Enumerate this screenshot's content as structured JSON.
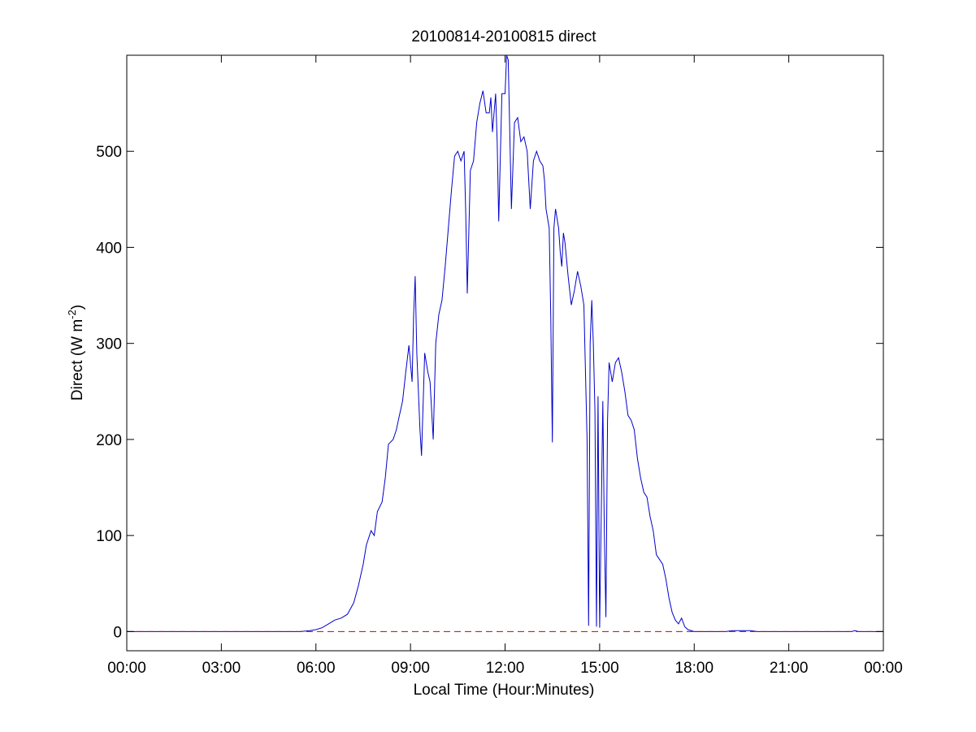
{
  "chart_data": {
    "type": "line",
    "title": "20100814-20100815 direct",
    "xlabel": "Local Time (Hour:Minutes)",
    "ylabel": {
      "prefix": "Direct (W m",
      "superscript": "-2",
      "suffix": ")"
    },
    "x_unit": "hours since 00:00 local time",
    "xlim": [
      0,
      24
    ],
    "ylim": [
      -20,
      600
    ],
    "x_ticks": [
      {
        "value": 0,
        "label": "00:00"
      },
      {
        "value": 3,
        "label": "03:00"
      },
      {
        "value": 6,
        "label": "06:00"
      },
      {
        "value": 9,
        "label": "09:00"
      },
      {
        "value": 12,
        "label": "12:00"
      },
      {
        "value": 15,
        "label": "15:00"
      },
      {
        "value": 18,
        "label": "18:00"
      },
      {
        "value": 21,
        "label": "21:00"
      },
      {
        "value": 24,
        "label": "00:00"
      }
    ],
    "y_ticks": [
      {
        "value": 0,
        "label": "0"
      },
      {
        "value": 100,
        "label": "100"
      },
      {
        "value": 200,
        "label": "200"
      },
      {
        "value": 300,
        "label": "300"
      },
      {
        "value": 400,
        "label": "400"
      },
      {
        "value": 500,
        "label": "500"
      }
    ],
    "grid": false,
    "colors": {
      "series": "#0000cc",
      "reference": "#cc0000",
      "axes": "#000000"
    },
    "series": [
      {
        "style": "solid",
        "color": "#0000cc",
        "points": [
          [
            0,
            0
          ],
          [
            5.5,
            0
          ],
          [
            5.8,
            1
          ],
          [
            6.0,
            2
          ],
          [
            6.2,
            4
          ],
          [
            6.4,
            8
          ],
          [
            6.6,
            12
          ],
          [
            6.8,
            14
          ],
          [
            7.0,
            18
          ],
          [
            7.2,
            30
          ],
          [
            7.35,
            48
          ],
          [
            7.5,
            70
          ],
          [
            7.6,
            90
          ],
          [
            7.75,
            105
          ],
          [
            7.85,
            100
          ],
          [
            7.95,
            125
          ],
          [
            8.1,
            135
          ],
          [
            8.2,
            160
          ],
          [
            8.3,
            195
          ],
          [
            8.45,
            200
          ],
          [
            8.55,
            210
          ],
          [
            8.65,
            225
          ],
          [
            8.75,
            240
          ],
          [
            8.85,
            270
          ],
          [
            8.95,
            298
          ],
          [
            9.05,
            260
          ],
          [
            9.1,
            330
          ],
          [
            9.15,
            370
          ],
          [
            9.2,
            290
          ],
          [
            9.3,
            210
          ],
          [
            9.35,
            183
          ],
          [
            9.45,
            290
          ],
          [
            9.55,
            270
          ],
          [
            9.62,
            260
          ],
          [
            9.72,
            200
          ],
          [
            9.8,
            300
          ],
          [
            9.9,
            330
          ],
          [
            10.0,
            345
          ],
          [
            10.1,
            380
          ],
          [
            10.2,
            420
          ],
          [
            10.3,
            460
          ],
          [
            10.4,
            495
          ],
          [
            10.5,
            500
          ],
          [
            10.6,
            490
          ],
          [
            10.7,
            500
          ],
          [
            10.75,
            440
          ],
          [
            10.8,
            352
          ],
          [
            10.9,
            480
          ],
          [
            11.0,
            490
          ],
          [
            11.1,
            530
          ],
          [
            11.2,
            550
          ],
          [
            11.3,
            563
          ],
          [
            11.4,
            540
          ],
          [
            11.5,
            540
          ],
          [
            11.55,
            556
          ],
          [
            11.6,
            520
          ],
          [
            11.7,
            560
          ],
          [
            11.75,
            510
          ],
          [
            11.8,
            427
          ],
          [
            11.9,
            560
          ],
          [
            12.0,
            560
          ],
          [
            12.05,
            600
          ],
          [
            12.1,
            595
          ],
          [
            12.15,
            520
          ],
          [
            12.2,
            440
          ],
          [
            12.3,
            530
          ],
          [
            12.4,
            535
          ],
          [
            12.5,
            510
          ],
          [
            12.6,
            515
          ],
          [
            12.7,
            500
          ],
          [
            12.8,
            440
          ],
          [
            12.9,
            490
          ],
          [
            13.0,
            500
          ],
          [
            13.1,
            490
          ],
          [
            13.2,
            485
          ],
          [
            13.25,
            470
          ],
          [
            13.3,
            440
          ],
          [
            13.4,
            420
          ],
          [
            13.45,
            330
          ],
          [
            13.5,
            197
          ],
          [
            13.55,
            420
          ],
          [
            13.6,
            440
          ],
          [
            13.7,
            420
          ],
          [
            13.75,
            395
          ],
          [
            13.8,
            380
          ],
          [
            13.85,
            415
          ],
          [
            13.9,
            405
          ],
          [
            14.0,
            370
          ],
          [
            14.1,
            340
          ],
          [
            14.2,
            355
          ],
          [
            14.3,
            375
          ],
          [
            14.4,
            360
          ],
          [
            14.5,
            340
          ],
          [
            14.6,
            200
          ],
          [
            14.65,
            6
          ],
          [
            14.7,
            300
          ],
          [
            14.75,
            345
          ],
          [
            14.8,
            300
          ],
          [
            14.85,
            230
          ],
          [
            14.9,
            5
          ],
          [
            14.95,
            245
          ],
          [
            15.0,
            4
          ],
          [
            15.1,
            240
          ],
          [
            15.15,
            100
          ],
          [
            15.2,
            15
          ],
          [
            15.25,
            220
          ],
          [
            15.3,
            280
          ],
          [
            15.4,
            260
          ],
          [
            15.5,
            280
          ],
          [
            15.6,
            285
          ],
          [
            15.7,
            270
          ],
          [
            15.8,
            250
          ],
          [
            15.9,
            225
          ],
          [
            16.0,
            220
          ],
          [
            16.1,
            210
          ],
          [
            16.2,
            180
          ],
          [
            16.3,
            160
          ],
          [
            16.4,
            145
          ],
          [
            16.5,
            140
          ],
          [
            16.6,
            120
          ],
          [
            16.7,
            105
          ],
          [
            16.8,
            80
          ],
          [
            16.9,
            75
          ],
          [
            17.0,
            70
          ],
          [
            17.1,
            55
          ],
          [
            17.2,
            35
          ],
          [
            17.3,
            20
          ],
          [
            17.4,
            12
          ],
          [
            17.5,
            8
          ],
          [
            17.6,
            14
          ],
          [
            17.7,
            5
          ],
          [
            17.8,
            2
          ],
          [
            18.0,
            0
          ],
          [
            19.0,
            0
          ],
          [
            19.2,
            1
          ],
          [
            19.8,
            1
          ],
          [
            20.0,
            0
          ],
          [
            23.0,
            0
          ],
          [
            23.1,
            1
          ],
          [
            23.2,
            0
          ],
          [
            24.0,
            0
          ]
        ]
      },
      {
        "style": "dashed",
        "color": "#cc0000",
        "points": [
          [
            0,
            0
          ],
          [
            24,
            0
          ]
        ]
      }
    ]
  }
}
